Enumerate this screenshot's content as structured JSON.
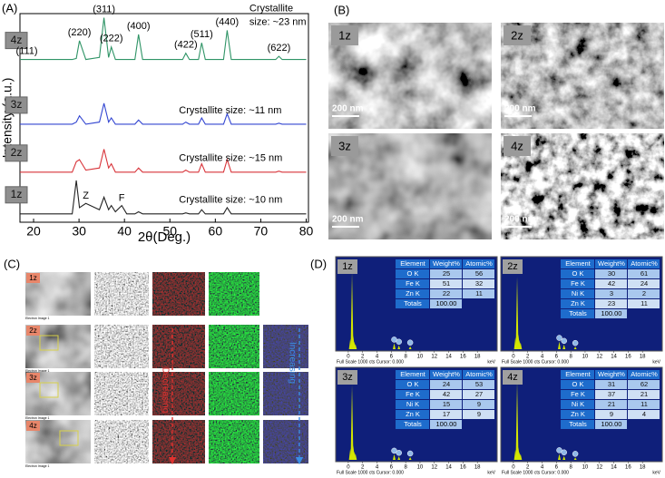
{
  "panels": {
    "a": "(A)",
    "b": "(B)",
    "c": "(C)",
    "d": "(D)"
  },
  "chart_data": {
    "type": "line",
    "x_label": "2θ(Deg.)",
    "y_label": "Intensity (a.u.)",
    "xlim": [
      17,
      80.5
    ],
    "xticks": [
      20,
      30,
      40,
      50,
      60,
      70,
      80
    ],
    "ylim": [
      0,
      100
    ],
    "x": [
      17,
      25,
      28.5,
      29.4,
      30.1,
      31.5,
      34.5,
      35.5,
      36.5,
      37.1,
      38,
      39.4,
      40.5,
      42.3,
      43.1,
      44,
      52.8,
      53.5,
      54.3,
      56.3,
      57,
      57.8,
      61.8,
      62.6,
      63.5,
      73.3,
      74,
      74.7,
      80
    ],
    "series": [
      {
        "name": "4z",
        "color": "#2f9466",
        "annotation": [
          "Crystallite",
          "size: ~23 nm"
        ],
        "values": [
          78,
          78,
          78,
          78.5,
          87,
          78,
          79,
          98,
          79,
          84,
          78,
          78,
          78,
          78,
          90,
          78,
          78,
          81,
          78,
          78,
          86,
          78,
          78,
          92,
          78,
          78,
          79.5,
          78,
          78
        ]
      },
      {
        "name": "3z",
        "color": "#3346d1",
        "annotation": [
          "Crystallite size: ~11 nm"
        ],
        "values": [
          47,
          47,
          47,
          48,
          51,
          47,
          48,
          57,
          48,
          50,
          47,
          47,
          47,
          47,
          49,
          47,
          47,
          48,
          47,
          47,
          50,
          47,
          47,
          52,
          47,
          47,
          47.5,
          47,
          47
        ]
      },
      {
        "name": "2z",
        "color": "#d8343a",
        "annotation": [
          "Crystallite size: ~15 nm"
        ],
        "values": [
          24,
          24,
          24,
          29,
          30,
          25,
          26,
          35,
          26,
          28,
          24,
          24,
          24,
          24,
          26,
          24,
          24,
          25,
          24,
          24,
          28,
          24,
          24,
          30,
          24,
          24,
          24.5,
          24,
          24
        ]
      },
      {
        "name": "1z",
        "color": "#222222",
        "annotation": [
          "Crystallite size: ~10 nm"
        ],
        "peak_labels": [
          {
            "label": "Z",
            "x": 31.5
          },
          {
            "label": "F",
            "x": 39.4
          }
        ],
        "values": [
          4,
          4,
          4,
          20,
          7,
          9,
          6,
          12,
          6,
          8,
          5,
          8,
          4,
          4,
          5,
          4,
          4,
          4.5,
          4,
          4,
          6,
          4,
          4,
          7,
          4,
          4,
          4,
          4,
          4
        ]
      }
    ],
    "peak_labels": [
      {
        "label": "(111)",
        "x": 18.5
      },
      {
        "label": "(220)",
        "x": 30.1
      },
      {
        "label": "(311)",
        "x": 35.5
      },
      {
        "label": "(222)",
        "x": 37.1
      },
      {
        "label": "(400)",
        "x": 43.1
      },
      {
        "label": "(422)",
        "x": 53.5
      },
      {
        "label": "(511)",
        "x": 57
      },
      {
        "label": "(440)",
        "x": 62.6
      },
      {
        "label": "(622)",
        "x": 74
      }
    ]
  },
  "sem": {
    "images": [
      {
        "label": "1z",
        "scale": "200 nm"
      },
      {
        "label": "2z",
        "scale": "200 nm"
      },
      {
        "label": "3z",
        "scale": "200 nm"
      },
      {
        "label": "4z",
        "scale": "200 nm"
      }
    ]
  },
  "mapping": {
    "rows": [
      {
        "label": "1z"
      },
      {
        "label": "2z"
      },
      {
        "label": "3z"
      },
      {
        "label": "4z"
      }
    ],
    "image_caption": "Electron Image 1",
    "decreasing": "Decreasing",
    "increasing": "Increasing"
  },
  "eds": {
    "columns": [
      "Element",
      "Weight%",
      "Atomic%"
    ],
    "total_label": "Totals",
    "xlim": [
      -1,
      20
    ],
    "xticks": [
      0,
      2,
      4,
      6,
      8,
      10,
      12,
      14,
      16,
      18
    ],
    "ylim": [
      0,
      1000
    ],
    "x_unit": "keV",
    "footer": "Full Scale 1000 cts Cursor: 0.000",
    "peak_x": [
      0.28,
      0.52,
      0.7,
      0.85,
      1.0,
      6.4,
      7.06,
      8.63
    ],
    "panels": [
      {
        "label": "1z",
        "rows": [
          [
            "O K",
            25,
            56
          ],
          [
            "Fe K",
            51,
            32
          ],
          [
            "Zn K",
            22,
            11
          ]
        ],
        "total": "100.00",
        "peaks": [
          120,
          900,
          160,
          90,
          60,
          70,
          45,
          35
        ]
      },
      {
        "label": "2z",
        "rows": [
          [
            "O K",
            30,
            61
          ],
          [
            "Fe K",
            42,
            24
          ],
          [
            "Ni K",
            3,
            2
          ],
          [
            "Zn K",
            23,
            11
          ]
        ],
        "total": "100.00",
        "peaks": [
          140,
          850,
          180,
          110,
          80,
          90,
          55,
          30
        ]
      },
      {
        "label": "3z",
        "rows": [
          [
            "O K",
            24,
            53
          ],
          [
            "Fe K",
            42,
            27
          ],
          [
            "Ni K",
            15,
            9
          ],
          [
            "Zn K",
            17,
            9
          ]
        ],
        "total": "100.00",
        "peaks": [
          130,
          880,
          170,
          100,
          75,
          65,
          40,
          32
        ]
      },
      {
        "label": "4z",
        "rows": [
          [
            "O K",
            31,
            62
          ],
          [
            "Fe K",
            37,
            21
          ],
          [
            "Ni K",
            21,
            11
          ],
          [
            "Zn K",
            9,
            4
          ]
        ],
        "total": "100.00",
        "peaks": [
          120,
          920,
          150,
          95,
          70,
          70,
          45,
          28
        ]
      }
    ]
  }
}
